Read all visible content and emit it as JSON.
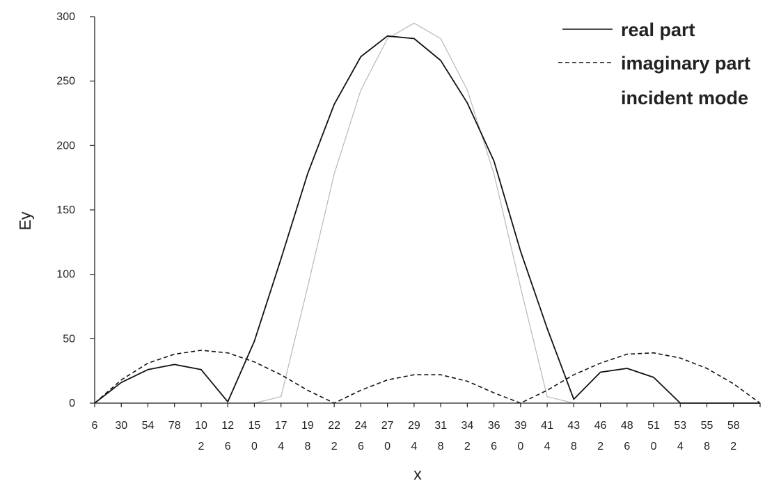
{
  "chart_data": {
    "type": "line",
    "title": "",
    "xlabel": "x",
    "ylabel": "Ey",
    "ylim": [
      0,
      300
    ],
    "y_ticks": [
      "0",
      "50",
      "100",
      "150",
      "200",
      "250",
      "300"
    ],
    "x_tick_labels": [
      [
        "6"
      ],
      [
        "30"
      ],
      [
        "54"
      ],
      [
        "78"
      ],
      [
        "10",
        "2"
      ],
      [
        "12",
        "6"
      ],
      [
        "15",
        "0"
      ],
      [
        "17",
        "4"
      ],
      [
        "19",
        "8"
      ],
      [
        "22",
        "2"
      ],
      [
        "24",
        "6"
      ],
      [
        "27",
        "0"
      ],
      [
        "29",
        "4"
      ],
      [
        "31",
        "8"
      ],
      [
        "34",
        "2"
      ],
      [
        "36",
        "6"
      ],
      [
        "39",
        "0"
      ],
      [
        "41",
        "4"
      ],
      [
        "43",
        "8"
      ],
      [
        "46",
        "2"
      ],
      [
        "48",
        "6"
      ],
      [
        "51",
        "0"
      ],
      [
        "53",
        "4"
      ],
      [
        "55",
        "8"
      ],
      [
        "58",
        "2"
      ]
    ],
    "grid": false,
    "legend_position": "top-right",
    "x": [
      6,
      30,
      54,
      78,
      102,
      126,
      150,
      174,
      198,
      222,
      246,
      270,
      294,
      318,
      342,
      366,
      390,
      414,
      438,
      462,
      486,
      510,
      534,
      558,
      582,
      606
    ],
    "series": [
      {
        "name": "real part",
        "style": "solid",
        "color": "#111111",
        "values": [
          0,
          16,
          26,
          30,
          26,
          1,
          48,
          112,
          178,
          232,
          269,
          285,
          283,
          266,
          233,
          188,
          118,
          58,
          3,
          24,
          27,
          20,
          0,
          0,
          0,
          0
        ]
      },
      {
        "name": "imaginary part",
        "style": "dashed",
        "color": "#111111",
        "values": [
          0,
          18,
          31,
          38,
          41,
          39,
          32,
          22,
          10,
          0,
          10,
          18,
          22,
          22,
          17,
          8,
          0,
          10,
          22,
          31,
          38,
          39,
          35,
          27,
          15,
          0
        ]
      },
      {
        "name": "incident mode",
        "style": "solid",
        "color": "#b8b8b8",
        "values": [
          0,
          0,
          0,
          0,
          0,
          0,
          0,
          5,
          90,
          178,
          243,
          283,
          295,
          283,
          243,
          178,
          90,
          5,
          0,
          0,
          0,
          0,
          0,
          0,
          0,
          0
        ]
      }
    ]
  }
}
